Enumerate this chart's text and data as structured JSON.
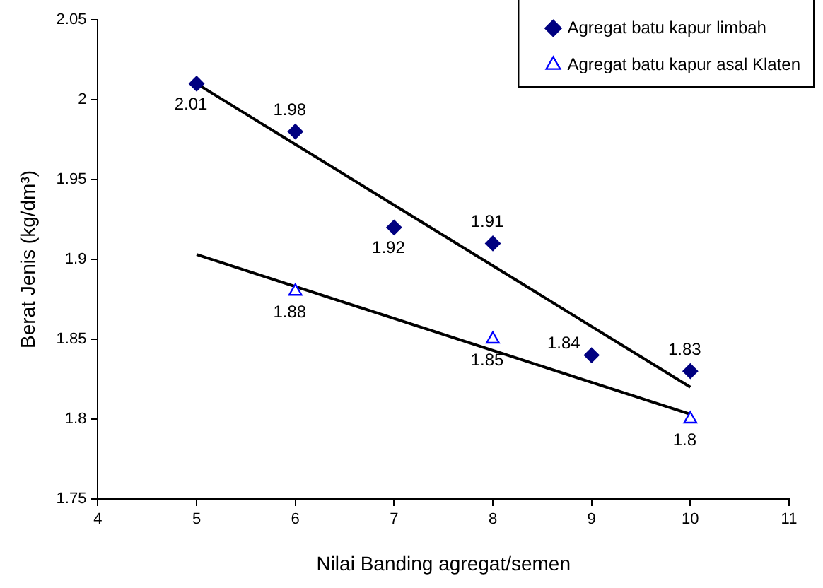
{
  "chart_data": {
    "type": "scatter",
    "xlabel": "Nilai Banding agregat/semen",
    "ylabel": "Berat Jenis (kg/dm³)",
    "xlim": [
      4,
      11
    ],
    "xticks": [
      4,
      5,
      6,
      7,
      8,
      9,
      10,
      11
    ],
    "ylim": [
      1.75,
      2.05
    ],
    "yticks": [
      1.75,
      1.8,
      1.85,
      1.9,
      1.95,
      2,
      2.05
    ],
    "grid": false,
    "legend": "top right",
    "series": [
      {
        "name": "Agregat batu kapur limbah",
        "type": "scatter",
        "marker": "diamond",
        "color": "#000080",
        "x": [
          5,
          6,
          7,
          8,
          9,
          10
        ],
        "values": [
          2.01,
          1.98,
          1.92,
          1.91,
          1.84,
          1.83
        ],
        "value_labels": [
          "2.01",
          "1.98",
          "1.92",
          "1.91",
          "1.84",
          "1.83"
        ]
      },
      {
        "name": "Agregat batu kapur asal Klaten",
        "type": "scatter",
        "marker": "triangle",
        "color": "#0000ff",
        "x": [
          6,
          8,
          10
        ],
        "values": [
          1.88,
          1.85,
          1.8
        ],
        "value_labels": [
          "1.88",
          "1.85",
          "1.8"
        ]
      },
      {
        "type": "line",
        "marker": "none",
        "color": "#000000",
        "x": [
          5,
          10
        ],
        "values": [
          2.01,
          1.82
        ]
      },
      {
        "type": "line",
        "marker": "none",
        "color": "#000000",
        "x": [
          5,
          10
        ],
        "values": [
          1.903,
          1.803
        ]
      }
    ]
  }
}
